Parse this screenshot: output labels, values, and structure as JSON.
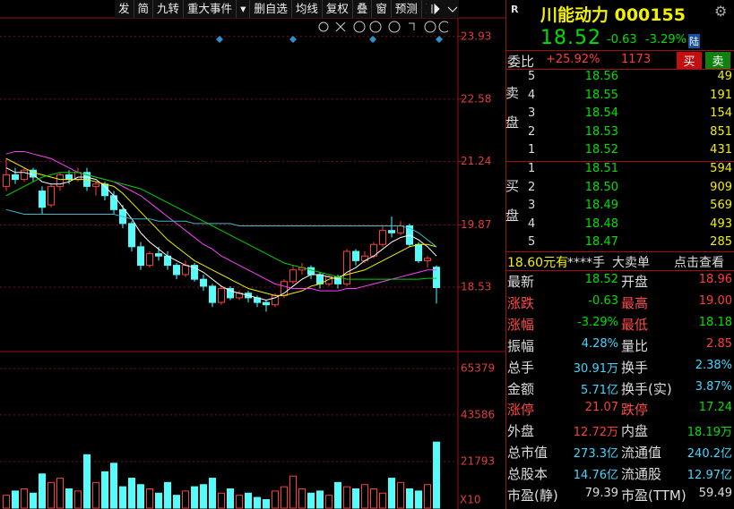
{
  "toolbar": [
    "发",
    "简",
    "九转",
    "重大事件",
    "删自选",
    "均线",
    "复权",
    "叠",
    "窗",
    "预测",
    "更多"
  ],
  "stock": {
    "tag": "R",
    "name": "川能动力 000155",
    "price": "18.52",
    "change": "-0.63",
    "change_pct": "-3.29%",
    "market": "陆"
  },
  "order_book": {
    "ratio_label": "委比",
    "ratio": "+25.92%",
    "diff": "1173",
    "buy_button": "买",
    "sell_button": "卖",
    "ask_label": "卖盘",
    "bid_label": "买盘",
    "asks": [
      {
        "level": "5",
        "price": "18.56",
        "volume": "49"
      },
      {
        "level": "4",
        "price": "18.55",
        "volume": "191"
      },
      {
        "level": "3",
        "price": "18.54",
        "volume": "154"
      },
      {
        "level": "2",
        "price": "18.53",
        "volume": "851"
      },
      {
        "level": "1",
        "price": "18.52",
        "volume": "431"
      }
    ],
    "bids": [
      {
        "level": "1",
        "price": "18.51",
        "volume": "594"
      },
      {
        "level": "2",
        "price": "18.50",
        "volume": "909"
      },
      {
        "level": "3",
        "price": "18.49",
        "volume": "569"
      },
      {
        "level": "4",
        "price": "18.48",
        "volume": "493"
      },
      {
        "level": "5",
        "price": "18.47",
        "volume": "285"
      }
    ]
  },
  "big_order": [
    "18.60元有",
    "****手",
    "大卖单",
    "点击查看"
  ],
  "stats": [
    [
      "最新",
      "18.52",
      "开盘",
      "18.96"
    ],
    [
      "涨跌",
      "-0.63",
      "最高",
      "19.00"
    ],
    [
      "涨幅",
      "-3.29%",
      "最低",
      "18.18"
    ],
    [
      "振幅",
      "4.28%",
      "量比",
      "2.85"
    ],
    [
      "总手",
      "30.91万",
      "换手",
      "2.38%"
    ],
    [
      "金额",
      "5.71亿",
      "换手(实)",
      "3.87%"
    ],
    [
      "涨停",
      "21.07",
      "跌停",
      "17.24"
    ],
    [
      "外盘",
      "12.72万",
      "内盘",
      "18.19万"
    ],
    [
      "总市值",
      "273.3亿",
      "流通值",
      "240.2亿"
    ],
    [
      "总股本",
      "14.76亿",
      "流通股",
      "12.97亿"
    ],
    [
      "市盈(静)",
      "79.39",
      "市盈(TTM)",
      "59.49"
    ]
  ],
  "chart_data": {
    "type": "candlestick",
    "ylim": [
      17.2,
      24.33
    ],
    "yticks": [
      23.93,
      22.58,
      21.24,
      19.87,
      18.53
    ],
    "volume_lim": [
      0,
      72436
    ],
    "volume_ticks": [
      65379,
      43586,
      21793
    ],
    "volume_unit": "X10",
    "up_color": "#ff3c3c",
    "down_color": "#54fcfc",
    "ohlc": [
      [
        20.7,
        21.3,
        20.6,
        20.95
      ],
      [
        20.95,
        21.1,
        20.75,
        20.85
      ],
      [
        20.85,
        21.1,
        20.8,
        21.05
      ],
      [
        21.05,
        21.1,
        20.8,
        20.9
      ],
      [
        20.6,
        20.7,
        20.1,
        20.25
      ],
      [
        20.3,
        20.75,
        20.25,
        20.7
      ],
      [
        20.7,
        21.0,
        20.6,
        20.95
      ],
      [
        20.95,
        21.05,
        20.75,
        20.85
      ],
      [
        20.85,
        21.1,
        20.8,
        21.0
      ],
      [
        21.0,
        21.1,
        20.6,
        20.7
      ],
      [
        20.7,
        20.8,
        20.5,
        20.75
      ],
      [
        20.75,
        20.8,
        20.4,
        20.5
      ],
      [
        20.5,
        20.6,
        20.1,
        20.2
      ],
      [
        20.2,
        20.3,
        19.8,
        19.9
      ],
      [
        19.9,
        19.95,
        19.3,
        19.4
      ],
      [
        19.4,
        19.5,
        18.9,
        19.0
      ],
      [
        19.0,
        19.3,
        18.95,
        19.25
      ],
      [
        19.25,
        19.4,
        19.1,
        19.2
      ],
      [
        19.2,
        19.3,
        18.9,
        19.0
      ],
      [
        19.0,
        19.05,
        18.7,
        18.8
      ],
      [
        18.8,
        19.1,
        18.75,
        19.0
      ],
      [
        19.0,
        19.05,
        18.65,
        18.7
      ],
      [
        18.7,
        18.8,
        18.45,
        18.55
      ],
      [
        18.55,
        18.6,
        18.1,
        18.2
      ],
      [
        18.2,
        18.55,
        18.15,
        18.5
      ],
      [
        18.5,
        18.55,
        18.25,
        18.3
      ],
      [
        18.3,
        18.45,
        18.25,
        18.4
      ],
      [
        18.4,
        18.45,
        18.2,
        18.3
      ],
      [
        18.3,
        18.35,
        18.1,
        18.2
      ],
      [
        18.2,
        18.25,
        18.0,
        18.15
      ],
      [
        18.15,
        18.4,
        18.1,
        18.35
      ],
      [
        18.35,
        18.7,
        18.3,
        18.65
      ],
      [
        18.65,
        19.0,
        18.6,
        18.9
      ],
      [
        18.9,
        19.05,
        18.8,
        18.95
      ],
      [
        18.95,
        19.0,
        18.7,
        18.8
      ],
      [
        18.8,
        18.85,
        18.5,
        18.6
      ],
      [
        18.6,
        18.8,
        18.55,
        18.75
      ],
      [
        18.75,
        18.8,
        18.5,
        18.6
      ],
      [
        18.6,
        19.35,
        18.55,
        19.3
      ],
      [
        19.3,
        19.35,
        19.0,
        19.1
      ],
      [
        19.1,
        19.3,
        19.05,
        19.2
      ],
      [
        19.2,
        19.5,
        19.15,
        19.45
      ],
      [
        19.45,
        19.85,
        19.4,
        19.75
      ],
      [
        19.75,
        20.05,
        19.6,
        19.7
      ],
      [
        19.7,
        19.95,
        19.65,
        19.85
      ],
      [
        19.85,
        19.9,
        19.4,
        19.45
      ],
      [
        19.45,
        19.5,
        19.05,
        19.1
      ],
      [
        19.1,
        19.2,
        18.95,
        19.15
      ],
      [
        18.96,
        19.0,
        18.18,
        18.52
      ]
    ],
    "volume": [
      6000,
      8000,
      9000,
      7000,
      16000,
      12000,
      14000,
      9000,
      8000,
      25000,
      12000,
      17000,
      21000,
      10000,
      14000,
      11000,
      9000,
      7000,
      12000,
      6000,
      8000,
      10000,
      11000,
      14000,
      7000,
      9000,
      6000,
      7000,
      5000,
      4000,
      8000,
      10000,
      15000,
      9000,
      7000,
      8000,
      6000,
      12000,
      10000,
      9000,
      11000,
      9000,
      7000,
      14000,
      12000,
      9000,
      8000,
      11000,
      30910
    ],
    "series": [
      {
        "color": "#ffffff",
        "values": [
          21.1,
          21.0,
          21.0,
          20.95,
          20.8,
          20.75,
          20.75,
          20.8,
          20.9,
          20.9,
          20.85,
          20.7,
          20.5,
          20.25,
          20.0,
          19.7,
          19.5,
          19.35,
          19.2,
          19.1,
          19.0,
          18.95,
          18.85,
          18.7,
          18.55,
          18.45,
          18.4,
          18.35,
          18.3,
          18.25,
          18.3,
          18.4,
          18.55,
          18.7,
          18.8,
          18.8,
          18.75,
          18.7,
          18.85,
          18.95,
          19.1,
          19.2,
          19.35,
          19.5,
          19.6,
          19.65,
          19.55,
          19.4,
          19.2
        ]
      },
      {
        "color": "#f0f000",
        "values": [
          21.3,
          21.2,
          21.1,
          21.0,
          20.95,
          20.9,
          20.85,
          20.85,
          20.85,
          20.85,
          20.8,
          20.75,
          20.7,
          20.55,
          20.35,
          20.15,
          19.95,
          19.75,
          19.55,
          19.4,
          19.25,
          19.1,
          19.0,
          18.9,
          18.8,
          18.7,
          18.6,
          18.5,
          18.45,
          18.4,
          18.35,
          18.35,
          18.4,
          18.45,
          18.55,
          18.6,
          18.7,
          18.75,
          18.8,
          18.85,
          18.9,
          19.0,
          19.1,
          19.2,
          19.3,
          19.4,
          19.45,
          19.45,
          19.4
        ]
      },
      {
        "color": "#ff40ff",
        "values": [
          21.4,
          21.45,
          21.45,
          21.4,
          21.35,
          21.3,
          21.2,
          21.1,
          21.0,
          20.95,
          20.9,
          20.85,
          20.8,
          20.7,
          20.6,
          20.5,
          20.35,
          20.2,
          20.05,
          19.9,
          19.75,
          19.6,
          19.45,
          19.35,
          19.2,
          19.1,
          19.0,
          18.9,
          18.8,
          18.7,
          18.6,
          18.55,
          18.5,
          18.5,
          18.5,
          18.45,
          18.45,
          18.45,
          18.5,
          18.5,
          18.55,
          18.6,
          18.65,
          18.7,
          18.75,
          18.8,
          18.85,
          18.9,
          18.9
        ]
      },
      {
        "color": "#00d000",
        "values": [
          20.5,
          20.6,
          20.7,
          20.8,
          20.9,
          20.95,
          21.0,
          21.0,
          21.0,
          20.95,
          20.9,
          20.85,
          20.8,
          20.75,
          20.7,
          20.65,
          20.55,
          20.45,
          20.35,
          20.25,
          20.15,
          20.05,
          19.95,
          19.85,
          19.75,
          19.65,
          19.55,
          19.45,
          19.35,
          19.25,
          19.15,
          19.05,
          19.0,
          18.95,
          18.9,
          18.85,
          18.8,
          18.75,
          18.7,
          18.7,
          18.7,
          18.7,
          18.7,
          18.7,
          18.7,
          18.7,
          18.7,
          18.72,
          18.72
        ]
      },
      {
        "color": "#3cb8c8",
        "values": [
          20.2,
          20.15,
          20.1,
          20.1,
          20.1,
          20.1,
          20.1,
          20.1,
          20.1,
          20.1,
          20.1,
          20.1,
          20.1,
          20.05,
          20.0,
          20.0,
          20.0,
          19.95,
          19.95,
          19.95,
          19.95,
          19.9,
          19.9,
          19.9,
          19.9,
          19.9,
          19.85,
          19.85,
          19.85,
          19.85,
          19.85,
          19.85,
          19.85,
          19.85,
          19.85,
          19.85,
          19.85,
          19.85,
          19.85,
          19.85,
          19.85,
          19.85,
          19.85,
          19.85,
          19.85,
          19.8,
          19.7,
          19.55,
          19.4
        ]
      }
    ]
  }
}
